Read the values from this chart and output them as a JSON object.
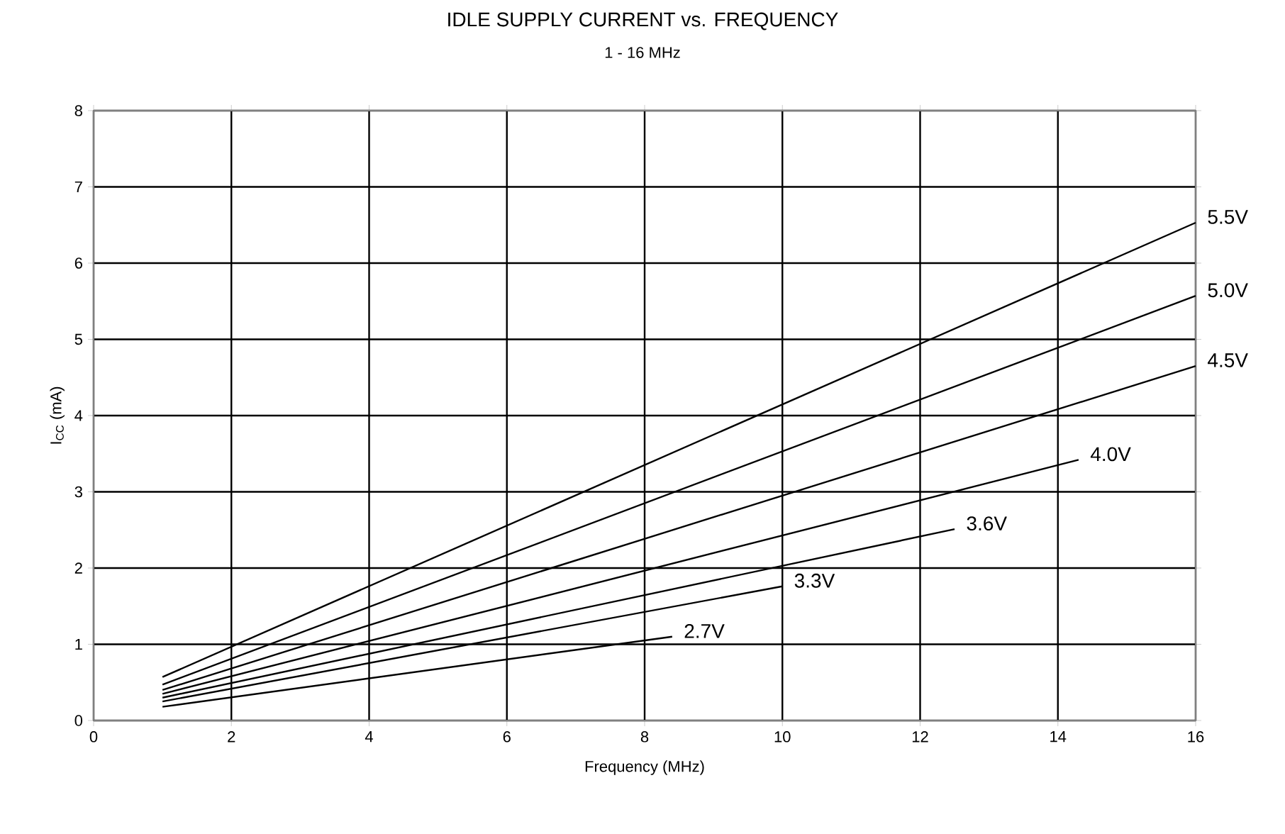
{
  "chart_data": {
    "type": "line",
    "title": "IDLE SUPPLY CURRENT vs. FREQUENCY",
    "subtitle": "1 - 16 MHz",
    "xlabel": "Frequency (MHz)",
    "ylabel": "I$_{CC}$ (mA)",
    "xlim": [
      0,
      16
    ],
    "ylim": [
      0,
      8
    ],
    "xticks": [
      0,
      2,
      4,
      6,
      8,
      10,
      12,
      14,
      16
    ],
    "yticks": [
      0,
      1,
      2,
      3,
      4,
      5,
      6,
      7,
      8
    ],
    "grid": true,
    "legend": false,
    "marker": "none",
    "line_style": "solid",
    "series": [
      {
        "name": "5.5V",
        "color": "#000000",
        "x": [
          1,
          16
        ],
        "values": [
          0.57,
          6.53
        ]
      },
      {
        "name": "5.0V",
        "color": "#000000",
        "x": [
          1,
          16
        ],
        "values": [
          0.47,
          5.57
        ]
      },
      {
        "name": "4.5V",
        "color": "#000000",
        "x": [
          1,
          16
        ],
        "values": [
          0.4,
          4.65
        ]
      },
      {
        "name": "4.0V",
        "color": "#000000",
        "x": [
          1,
          14.3
        ],
        "values": [
          0.35,
          3.42
        ]
      },
      {
        "name": "3.6V",
        "color": "#000000",
        "x": [
          1,
          12.5
        ],
        "values": [
          0.3,
          2.51
        ]
      },
      {
        "name": "3.3V",
        "color": "#000000",
        "x": [
          1,
          10
        ],
        "values": [
          0.25,
          1.76
        ]
      },
      {
        "name": "2.7V",
        "color": "#000000",
        "x": [
          1,
          8.4
        ],
        "values": [
          0.18,
          1.1
        ]
      }
    ]
  }
}
